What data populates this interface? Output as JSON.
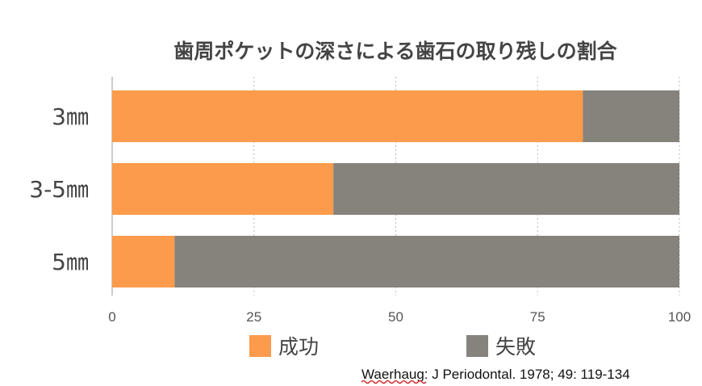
{
  "chart_data": {
    "type": "bar",
    "orientation": "horizontal",
    "stacked": true,
    "title": "歯周ポケットの深さによる歯石の取り残しの割合",
    "categories": [
      "3㎜",
      "3-5㎜",
      "5㎜"
    ],
    "series": [
      {
        "name": "成功",
        "values": [
          83,
          39,
          11
        ],
        "color": "#FB9B4B"
      },
      {
        "name": "失敗",
        "values": [
          17,
          61,
          89
        ],
        "color": "#86827C"
      }
    ],
    "xlim": [
      0,
      100
    ],
    "xticks": [
      0,
      25,
      50,
      75,
      100
    ],
    "grid": true,
    "legend_position": "bottom"
  },
  "citation": "Waerhaug: J Periodontal. 1978; 49: 119-134"
}
